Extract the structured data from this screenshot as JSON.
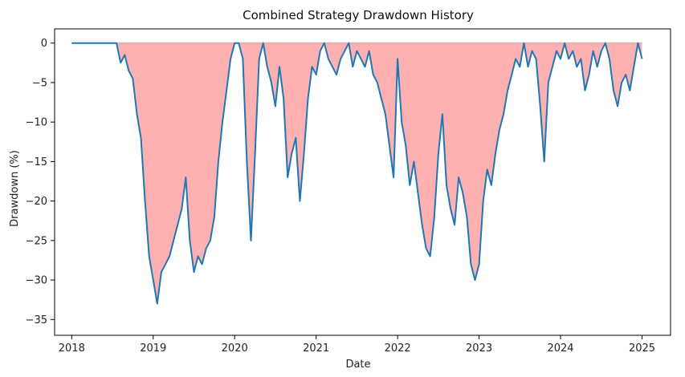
{
  "chart_data": {
    "type": "area",
    "title": "Combined Strategy Drawdown History",
    "xlabel": "Date",
    "ylabel": "Drawdown (%)",
    "x_ticks": [
      "2018",
      "2019",
      "2020",
      "2021",
      "2022",
      "2023",
      "2024",
      "2025"
    ],
    "y_ticks": [
      0,
      -5,
      -10,
      -15,
      -20,
      -25,
      -30,
      -35
    ],
    "xlim": [
      2017.79,
      2025.35
    ],
    "ylim": [
      -37,
      1.8
    ],
    "grid": false,
    "legend": "none",
    "colors": {
      "line": "#1f77b4",
      "fill": "#ffb0b0",
      "fill_edge": "#ee8888"
    },
    "series": [
      {
        "x": [
          2018.0,
          2018.2,
          2018.4,
          2018.55,
          2018.6,
          2018.65,
          2018.7,
          2018.75,
          2018.8,
          2018.85,
          2018.9,
          2018.95,
          2019.0,
          2019.05,
          2019.1,
          2019.15,
          2019.2,
          2019.25,
          2019.3,
          2019.35,
          2019.4,
          2019.45,
          2019.5,
          2019.55,
          2019.6,
          2019.65,
          2019.7,
          2019.75,
          2019.8,
          2019.85,
          2019.9,
          2019.95,
          2020.0,
          2020.05,
          2020.1,
          2020.15,
          2020.2,
          2020.25,
          2020.3,
          2020.35,
          2020.4,
          2020.45,
          2020.5,
          2020.55,
          2020.6,
          2020.65,
          2020.7,
          2020.75,
          2020.8,
          2020.85,
          2020.9,
          2020.95,
          2021.0,
          2021.05,
          2021.1,
          2021.15,
          2021.2,
          2021.25,
          2021.3,
          2021.35,
          2021.4,
          2021.45,
          2021.5,
          2021.55,
          2021.6,
          2021.65,
          2021.7,
          2021.75,
          2021.8,
          2021.85,
          2021.9,
          2021.95,
          2022.0,
          2022.05,
          2022.1,
          2022.15,
          2022.2,
          2022.25,
          2022.3,
          2022.35,
          2022.4,
          2022.45,
          2022.5,
          2022.55,
          2022.6,
          2022.65,
          2022.7,
          2022.75,
          2022.8,
          2022.85,
          2022.9,
          2022.95,
          2023.0,
          2023.05,
          2023.1,
          2023.15,
          2023.2,
          2023.25,
          2023.3,
          2023.35,
          2023.4,
          2023.45,
          2023.5,
          2023.55,
          2023.6,
          2023.65,
          2023.7,
          2023.75,
          2023.8,
          2023.85,
          2023.9,
          2023.95,
          2024.0,
          2024.05,
          2024.1,
          2024.15,
          2024.2,
          2024.25,
          2024.3,
          2024.35,
          2024.4,
          2024.45,
          2024.5,
          2024.55,
          2024.6,
          2024.65,
          2024.7,
          2024.75,
          2024.8,
          2024.85,
          2024.9,
          2024.95,
          2025.0
        ],
        "y": [
          0,
          0,
          0,
          0,
          -2.5,
          -1.5,
          -3.5,
          -4.5,
          -9,
          -12,
          -20,
          -27,
          -30,
          -33,
          -29,
          -28,
          -27,
          -25,
          -23,
          -21,
          -17,
          -25,
          -29,
          -27,
          -28,
          -26,
          -25,
          -22,
          -15,
          -10,
          -6,
          -2,
          0,
          0,
          -2,
          -15,
          -25,
          -14,
          -2,
          0,
          -3,
          -5,
          -8,
          -3,
          -7,
          -17,
          -14,
          -12,
          -20,
          -14,
          -7,
          -3,
          -4,
          -1,
          0,
          -2,
          -3,
          -4,
          -2,
          -1,
          0,
          -3,
          -1,
          -2,
          -3,
          -1,
          -4,
          -5,
          -7,
          -9,
          -13,
          -17,
          -2,
          -10,
          -13,
          -18,
          -15,
          -19,
          -23,
          -26,
          -27,
          -22,
          -14,
          -9,
          -18,
          -21,
          -23,
          -17,
          -19,
          -22,
          -28,
          -30,
          -28,
          -20,
          -16,
          -18,
          -14,
          -11,
          -9,
          -6,
          -4,
          -2,
          -3,
          0,
          -3,
          -1,
          -2,
          -8,
          -15,
          -5,
          -3,
          -1,
          -2,
          0,
          -2,
          -1,
          -3,
          -2,
          -6,
          -4,
          -1,
          -3,
          -1,
          0,
          -2,
          -6,
          -8,
          -5,
          -4,
          -6,
          -3,
          0,
          -2
        ]
      }
    ]
  }
}
